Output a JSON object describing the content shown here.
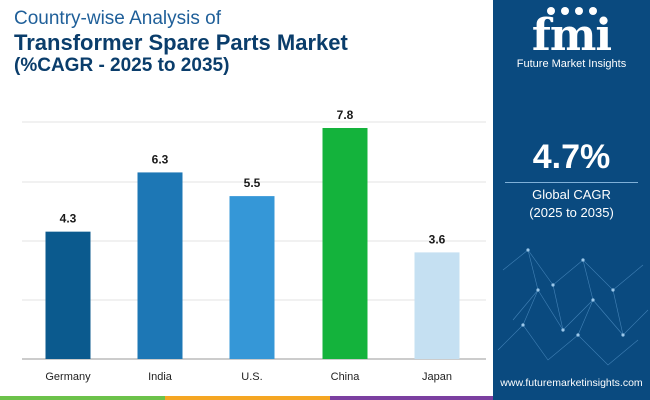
{
  "title": {
    "line1": "Country-wise Analysis of",
    "line2": "Transformer Spare Parts Market",
    "line3": "(%CAGR - 2025 to 2035)"
  },
  "chart_data": {
    "type": "bar",
    "title": "Country-wise Analysis of Transformer Spare Parts Market (%CAGR - 2025 to 2035)",
    "categories": [
      "Germany",
      "India",
      "U.S.",
      "China",
      "Japan"
    ],
    "values": [
      4.3,
      6.3,
      5.5,
      7.8,
      3.6
    ],
    "value_labels": [
      "4.3",
      "6.3",
      "5.5",
      "7.8",
      "3.6"
    ],
    "colors": [
      "#0b5a8e",
      "#1d77b5",
      "#3597d7",
      "#14b33c",
      "#c5e0f2"
    ],
    "xlabel": "",
    "ylabel": "",
    "ylim": [
      0,
      9
    ],
    "grid": true,
    "legend": "none"
  },
  "panel": {
    "logo": "fmi",
    "brand": "Future Market Insights",
    "cagr_value": "4.7%",
    "cagr_label_line1": "Global CAGR",
    "cagr_label_line2": "(2025 to 2035)",
    "url": "www.futuremarketinsights.com",
    "background_color": "#0a4a7f"
  },
  "footer_colors": [
    "#6cc24a",
    "#f5a623",
    "#7b3fa0",
    "#0a4a7f"
  ]
}
